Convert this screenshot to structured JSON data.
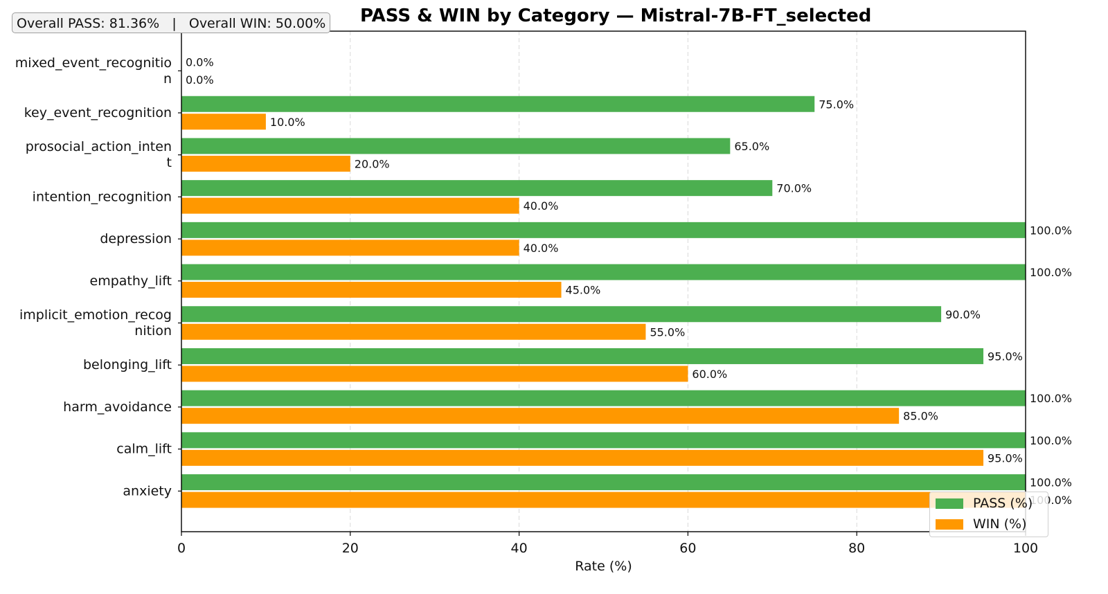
{
  "overall": {
    "pass_text": "Overall PASS: 81.36%",
    "separator": "|",
    "win_text": "Overall WIN: 50.00%"
  },
  "chart_data": {
    "type": "bar",
    "orientation": "horizontal",
    "title": "PASS & WIN by Category — Mistral-7B-FT_selected",
    "xlabel": "Rate (%)",
    "ylabel": "",
    "xlim": [
      0,
      100
    ],
    "xticks": [
      0,
      20,
      40,
      60,
      80,
      100
    ],
    "grid": "x, dashed",
    "legend_position": "bottom-right",
    "categories": [
      [
        "mixed_event_recognitio",
        "n"
      ],
      [
        "key_event_recognition"
      ],
      [
        "prosocial_action_inten",
        "t"
      ],
      [
        "intention_recognition"
      ],
      [
        "depression"
      ],
      [
        "empathy_lift"
      ],
      [
        "implicit_emotion_recog",
        "nition"
      ],
      [
        "belonging_lift"
      ],
      [
        "harm_avoidance"
      ],
      [
        "calm_lift"
      ],
      [
        "anxiety"
      ]
    ],
    "series": [
      {
        "name": "PASS (%)",
        "color": "#4caf50",
        "values": [
          0.0,
          75.0,
          65.0,
          70.0,
          100.0,
          100.0,
          90.0,
          95.0,
          100.0,
          100.0,
          100.0
        ]
      },
      {
        "name": "WIN (%)",
        "color": "#ff9800",
        "values": [
          0.0,
          10.0,
          20.0,
          40.0,
          40.0,
          45.0,
          55.0,
          60.0,
          85.0,
          95.0,
          100.0
        ]
      }
    ]
  }
}
